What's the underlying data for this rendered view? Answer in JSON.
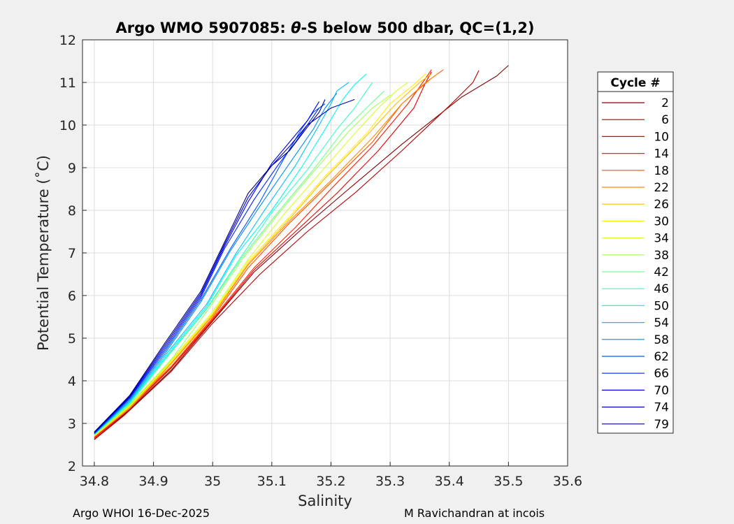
{
  "footer": {
    "left": "Argo WHOI 16-Dec-2025",
    "right": "M Ravichandran at incois"
  },
  "chart_data": {
    "type": "line",
    "title_prefix": "Argo WMO 5907085: ",
    "title_theta": "θ",
    "title_suffix": "-S below 500 dbar,  QC=(1,2)",
    "xlabel": "Salinity",
    "ylabel": "Potential Temperature (˚C)",
    "xlim": [
      34.78,
      35.6
    ],
    "ylim": [
      2,
      12
    ],
    "xticks": [
      34.8,
      34.9,
      35,
      35.1,
      35.2,
      35.3,
      35.4,
      35.5,
      35.6
    ],
    "xtick_labels": [
      "34.8",
      "34.9",
      "35",
      "35.1",
      "35.2",
      "35.3",
      "35.4",
      "35.5",
      "35.6"
    ],
    "yticks": [
      2,
      3,
      4,
      5,
      6,
      7,
      8,
      9,
      10,
      11,
      12
    ],
    "ytick_labels": [
      "2",
      "3",
      "4",
      "5",
      "6",
      "7",
      "8",
      "9",
      "10",
      "11",
      "12"
    ],
    "grid": true,
    "legend": {
      "title": "Cycle #",
      "placement": "outside-right",
      "entries": [
        {
          "label": "2",
          "color": "#800000"
        },
        {
          "label": "6",
          "color": "#b40000"
        },
        {
          "label": "10",
          "color": "#e80000"
        },
        {
          "label": "14",
          "color": "#ff2000"
        },
        {
          "label": "18",
          "color": "#ff5400"
        },
        {
          "label": "22",
          "color": "#ff8800"
        },
        {
          "label": "26",
          "color": "#ffbc00"
        },
        {
          "label": "30",
          "color": "#ffee00"
        },
        {
          "label": "34",
          "color": "#d6ff29"
        },
        {
          "label": "38",
          "color": "#a2ff5d"
        },
        {
          "label": "42",
          "color": "#6eff91"
        },
        {
          "label": "46",
          "color": "#3affc5"
        },
        {
          "label": "50",
          "color": "#06f6f9"
        },
        {
          "label": "54",
          "color": "#00c0ff"
        },
        {
          "label": "58",
          "color": "#008cff"
        },
        {
          "label": "62",
          "color": "#0058ff"
        },
        {
          "label": "66",
          "color": "#0024ff"
        },
        {
          "label": "70",
          "color": "#0000f0"
        },
        {
          "label": "74",
          "color": "#0000bc"
        },
        {
          "label": "79",
          "color": "#000080"
        }
      ]
    },
    "series": [
      {
        "name": "2",
        "color": "#800000",
        "points": [
          [
            34.8,
            2.62
          ],
          [
            34.85,
            3.2
          ],
          [
            34.93,
            4.25
          ],
          [
            35.0,
            5.4
          ],
          [
            35.07,
            6.55
          ],
          [
            35.15,
            7.55
          ],
          [
            35.23,
            8.5
          ],
          [
            35.32,
            9.55
          ],
          [
            35.42,
            10.65
          ],
          [
            35.48,
            11.15
          ],
          [
            35.5,
            11.4
          ]
        ]
      },
      {
        "name": "6",
        "color": "#b40000",
        "points": [
          [
            34.8,
            2.62
          ],
          [
            34.85,
            3.18
          ],
          [
            34.93,
            4.22
          ],
          [
            35.0,
            5.35
          ],
          [
            35.08,
            6.5
          ],
          [
            35.16,
            7.5
          ],
          [
            35.24,
            8.4
          ],
          [
            35.32,
            9.4
          ],
          [
            35.4,
            10.45
          ],
          [
            35.44,
            11.0
          ],
          [
            35.45,
            11.28
          ]
        ]
      },
      {
        "name": "10",
        "color": "#e80000",
        "points": [
          [
            34.8,
            2.65
          ],
          [
            34.85,
            3.22
          ],
          [
            34.93,
            4.3
          ],
          [
            35.0,
            5.42
          ],
          [
            35.07,
            6.6
          ],
          [
            35.14,
            7.5
          ],
          [
            35.21,
            8.4
          ],
          [
            35.28,
            9.4
          ],
          [
            35.34,
            10.4
          ],
          [
            35.36,
            11.0
          ],
          [
            35.37,
            11.25
          ]
        ]
      },
      {
        "name": "14",
        "color": "#ff2000",
        "points": [
          [
            34.8,
            2.66
          ],
          [
            34.85,
            3.24
          ],
          [
            34.93,
            4.32
          ],
          [
            35.0,
            5.45
          ],
          [
            35.07,
            6.65
          ],
          [
            35.14,
            7.6
          ],
          [
            35.2,
            8.5
          ],
          [
            35.27,
            9.5
          ],
          [
            35.33,
            10.5
          ],
          [
            35.36,
            11.1
          ],
          [
            35.37,
            11.3
          ]
        ]
      },
      {
        "name": "18",
        "color": "#ff5400",
        "points": [
          [
            34.8,
            2.68
          ],
          [
            34.85,
            3.26
          ],
          [
            34.93,
            4.34
          ],
          [
            35.0,
            5.48
          ],
          [
            35.06,
            6.65
          ],
          [
            35.13,
            7.7
          ],
          [
            35.2,
            8.65
          ],
          [
            35.27,
            9.6
          ],
          [
            35.32,
            10.5
          ],
          [
            35.37,
            11.1
          ],
          [
            35.39,
            11.3
          ]
        ]
      },
      {
        "name": "22",
        "color": "#ff8800",
        "points": [
          [
            34.8,
            2.7
          ],
          [
            34.86,
            3.35
          ],
          [
            34.93,
            4.4
          ],
          [
            35.0,
            5.52
          ],
          [
            35.06,
            6.72
          ],
          [
            35.13,
            7.75
          ],
          [
            35.2,
            8.7
          ],
          [
            35.27,
            9.7
          ],
          [
            35.32,
            10.5
          ],
          [
            35.36,
            11.0
          ],
          [
            35.38,
            11.2
          ]
        ]
      },
      {
        "name": "26",
        "color": "#ffbc00",
        "points": [
          [
            34.8,
            2.7
          ],
          [
            34.86,
            3.38
          ],
          [
            34.93,
            4.42
          ],
          [
            35.0,
            5.55
          ],
          [
            35.06,
            6.75
          ],
          [
            35.13,
            7.8
          ],
          [
            35.19,
            8.75
          ],
          [
            35.26,
            9.75
          ],
          [
            35.31,
            10.5
          ],
          [
            35.35,
            11.0
          ],
          [
            35.37,
            11.2
          ]
        ]
      },
      {
        "name": "30",
        "color": "#ffee00",
        "points": [
          [
            34.8,
            2.7
          ],
          [
            34.86,
            3.4
          ],
          [
            34.93,
            4.45
          ],
          [
            35.0,
            5.58
          ],
          [
            35.06,
            6.8
          ],
          [
            35.13,
            7.85
          ],
          [
            35.19,
            8.8
          ],
          [
            35.26,
            9.8
          ],
          [
            35.3,
            10.5
          ],
          [
            35.34,
            10.95
          ],
          [
            35.36,
            11.2
          ]
        ]
      },
      {
        "name": "34",
        "color": "#d6ff29",
        "points": [
          [
            34.8,
            2.72
          ],
          [
            34.86,
            3.42
          ],
          [
            34.93,
            4.48
          ],
          [
            35.0,
            5.62
          ],
          [
            35.06,
            6.85
          ],
          [
            35.12,
            7.9
          ],
          [
            35.18,
            8.85
          ],
          [
            35.24,
            9.8
          ],
          [
            35.28,
            10.4
          ],
          [
            35.31,
            10.8
          ],
          [
            35.33,
            11.0
          ]
        ]
      },
      {
        "name": "38",
        "color": "#a2ff5d",
        "points": [
          [
            34.8,
            2.72
          ],
          [
            34.86,
            3.44
          ],
          [
            34.93,
            4.5
          ],
          [
            34.99,
            5.62
          ],
          [
            35.05,
            6.85
          ],
          [
            35.11,
            7.9
          ],
          [
            35.17,
            8.9
          ],
          [
            35.23,
            9.85
          ],
          [
            35.27,
            10.4
          ],
          [
            35.3,
            10.7
          ]
        ]
      },
      {
        "name": "42",
        "color": "#6eff91",
        "points": [
          [
            34.8,
            2.74
          ],
          [
            34.86,
            3.46
          ],
          [
            34.92,
            4.5
          ],
          [
            34.99,
            5.68
          ],
          [
            35.05,
            6.9
          ],
          [
            35.11,
            7.95
          ],
          [
            35.17,
            8.95
          ],
          [
            35.22,
            9.85
          ],
          [
            35.26,
            10.4
          ],
          [
            35.29,
            10.8
          ]
        ]
      },
      {
        "name": "46",
        "color": "#3affc5",
        "points": [
          [
            34.8,
            2.74
          ],
          [
            34.86,
            3.48
          ],
          [
            34.92,
            4.52
          ],
          [
            34.99,
            5.7
          ],
          [
            35.05,
            6.95
          ],
          [
            35.1,
            7.95
          ],
          [
            35.16,
            8.95
          ],
          [
            35.21,
            9.9
          ],
          [
            35.24,
            10.4
          ],
          [
            35.26,
            10.8
          ],
          [
            35.27,
            11.0
          ]
        ]
      },
      {
        "name": "50",
        "color": "#06f6f9",
        "points": [
          [
            34.8,
            2.75
          ],
          [
            34.86,
            3.5
          ],
          [
            34.92,
            4.55
          ],
          [
            34.99,
            5.75
          ],
          [
            35.04,
            6.95
          ],
          [
            35.1,
            8.0
          ],
          [
            35.15,
            9.0
          ],
          [
            35.19,
            9.9
          ],
          [
            35.22,
            10.6
          ],
          [
            35.24,
            10.95
          ],
          [
            35.26,
            11.2
          ]
        ]
      },
      {
        "name": "54",
        "color": "#00c0ff",
        "points": [
          [
            34.8,
            2.75
          ],
          [
            34.86,
            3.52
          ],
          [
            34.92,
            4.6
          ],
          [
            34.99,
            5.8
          ],
          [
            35.04,
            7.0
          ],
          [
            35.09,
            8.05
          ],
          [
            35.14,
            9.05
          ],
          [
            35.18,
            10.0
          ],
          [
            35.2,
            10.5
          ],
          [
            35.21,
            10.8
          ],
          [
            35.23,
            11.0
          ]
        ]
      },
      {
        "name": "58",
        "color": "#008cff",
        "points": [
          [
            34.8,
            2.76
          ],
          [
            34.86,
            3.55
          ],
          [
            34.92,
            4.65
          ],
          [
            34.98,
            5.85
          ],
          [
            35.03,
            7.05
          ],
          [
            35.08,
            8.1
          ],
          [
            35.13,
            9.1
          ],
          [
            35.17,
            9.9
          ],
          [
            35.19,
            10.4
          ],
          [
            35.21,
            10.75
          ]
        ]
      },
      {
        "name": "62",
        "color": "#0058ff",
        "points": [
          [
            34.8,
            2.76
          ],
          [
            34.86,
            3.58
          ],
          [
            34.92,
            4.7
          ],
          [
            34.98,
            5.9
          ],
          [
            35.03,
            7.1
          ],
          [
            35.08,
            8.2
          ],
          [
            35.12,
            9.2
          ],
          [
            35.15,
            9.9
          ],
          [
            35.17,
            10.3
          ],
          [
            35.19,
            10.5
          ]
        ]
      },
      {
        "name": "66",
        "color": "#0024ff",
        "points": [
          [
            34.8,
            2.77
          ],
          [
            34.86,
            3.6
          ],
          [
            34.92,
            4.75
          ],
          [
            34.98,
            5.95
          ],
          [
            35.02,
            7.1
          ],
          [
            35.07,
            8.25
          ],
          [
            35.11,
            9.05
          ],
          [
            35.14,
            9.6
          ],
          [
            35.16,
            10.0
          ],
          [
            35.18,
            10.4
          ]
        ]
      },
      {
        "name": "70",
        "color": "#0000f0",
        "points": [
          [
            34.8,
            2.78
          ],
          [
            34.86,
            3.62
          ],
          [
            34.92,
            4.8
          ],
          [
            34.98,
            6.0
          ],
          [
            35.02,
            7.15
          ],
          [
            35.06,
            8.2
          ],
          [
            35.1,
            9.1
          ],
          [
            35.13,
            9.6
          ],
          [
            35.16,
            10.1
          ],
          [
            35.18,
            10.55
          ]
        ]
      },
      {
        "name": "74",
        "color": "#0000bc",
        "points": [
          [
            34.8,
            2.78
          ],
          [
            34.86,
            3.64
          ],
          [
            34.92,
            4.85
          ],
          [
            34.98,
            6.05
          ],
          [
            35.02,
            7.2
          ],
          [
            35.06,
            8.3
          ],
          [
            35.1,
            9.05
          ],
          [
            35.13,
            9.5
          ],
          [
            35.16,
            10.0
          ],
          [
            35.2,
            10.4
          ],
          [
            35.24,
            10.6
          ]
        ]
      },
      {
        "name": "79",
        "color": "#000080",
        "points": [
          [
            34.8,
            2.8
          ],
          [
            34.86,
            3.66
          ],
          [
            34.92,
            4.9
          ],
          [
            34.98,
            6.1
          ],
          [
            35.02,
            7.25
          ],
          [
            35.06,
            8.4
          ],
          [
            35.1,
            9.05
          ],
          [
            35.13,
            9.4
          ],
          [
            35.16,
            9.95
          ],
          [
            35.18,
            10.3
          ],
          [
            35.19,
            10.6
          ]
        ]
      }
    ]
  }
}
